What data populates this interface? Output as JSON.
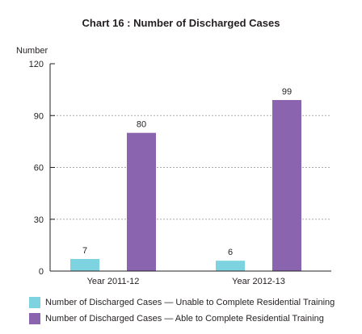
{
  "chart_data": {
    "type": "bar",
    "title": "Chart 16 : Number of Discharged Cases",
    "ylabel": "Number",
    "xlabel": "",
    "categories": [
      "Year 2011-12",
      "Year 2012-13"
    ],
    "series": [
      {
        "name": "Number of Discharged Cases — Unable to Complete Residential Training",
        "values": [
          7,
          6
        ],
        "color": "#7dd3e0"
      },
      {
        "name": "Number of Discharged Cases — Able to Complete Residential Training",
        "values": [
          80,
          99
        ],
        "color": "#8a64ae"
      }
    ],
    "ylim": [
      0,
      120
    ],
    "yticks": [
      0,
      30,
      60,
      90,
      120
    ],
    "grid": true,
    "legend": "bottom"
  }
}
